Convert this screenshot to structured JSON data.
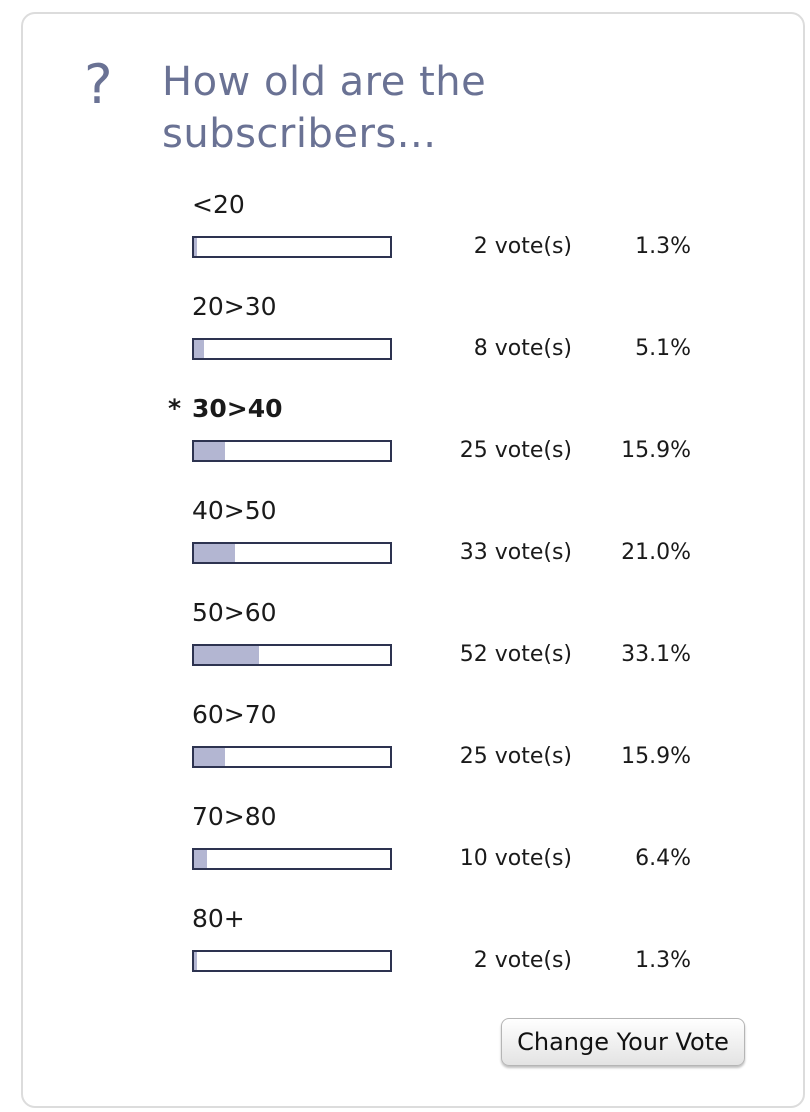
{
  "poll": {
    "icon": "?",
    "icon_name": "question-mark-icon",
    "question": "How old are the subscribers...",
    "selected_marker": "*",
    "options": [
      {
        "label": "<20",
        "votes": "2 vote(s)",
        "percent": "1.3%",
        "fraction": 0.013,
        "selected": false
      },
      {
        "label": "20>30",
        "votes": "8 vote(s)",
        "percent": "5.1%",
        "fraction": 0.051,
        "selected": false
      },
      {
        "label": "30>40",
        "votes": "25 vote(s)",
        "percent": "15.9%",
        "fraction": 0.159,
        "selected": true
      },
      {
        "label": "40>50",
        "votes": "33 vote(s)",
        "percent": "21.0%",
        "fraction": 0.21,
        "selected": false
      },
      {
        "label": "50>60",
        "votes": "52 vote(s)",
        "percent": "33.1%",
        "fraction": 0.331,
        "selected": false
      },
      {
        "label": "60>70",
        "votes": "25 vote(s)",
        "percent": "15.9%",
        "fraction": 0.159,
        "selected": false
      },
      {
        "label": "70>80",
        "votes": "10 vote(s)",
        "percent": "6.4%",
        "fraction": 0.064,
        "selected": false
      },
      {
        "label": "80+",
        "votes": "2 vote(s)",
        "percent": "1.3%",
        "fraction": 0.013,
        "selected": false
      }
    ],
    "change_vote_label": "Change Your Vote"
  },
  "colors": {
    "title": "#6a7294",
    "bar_fill": "#b3b6d2",
    "bar_border": "#2d3350"
  }
}
